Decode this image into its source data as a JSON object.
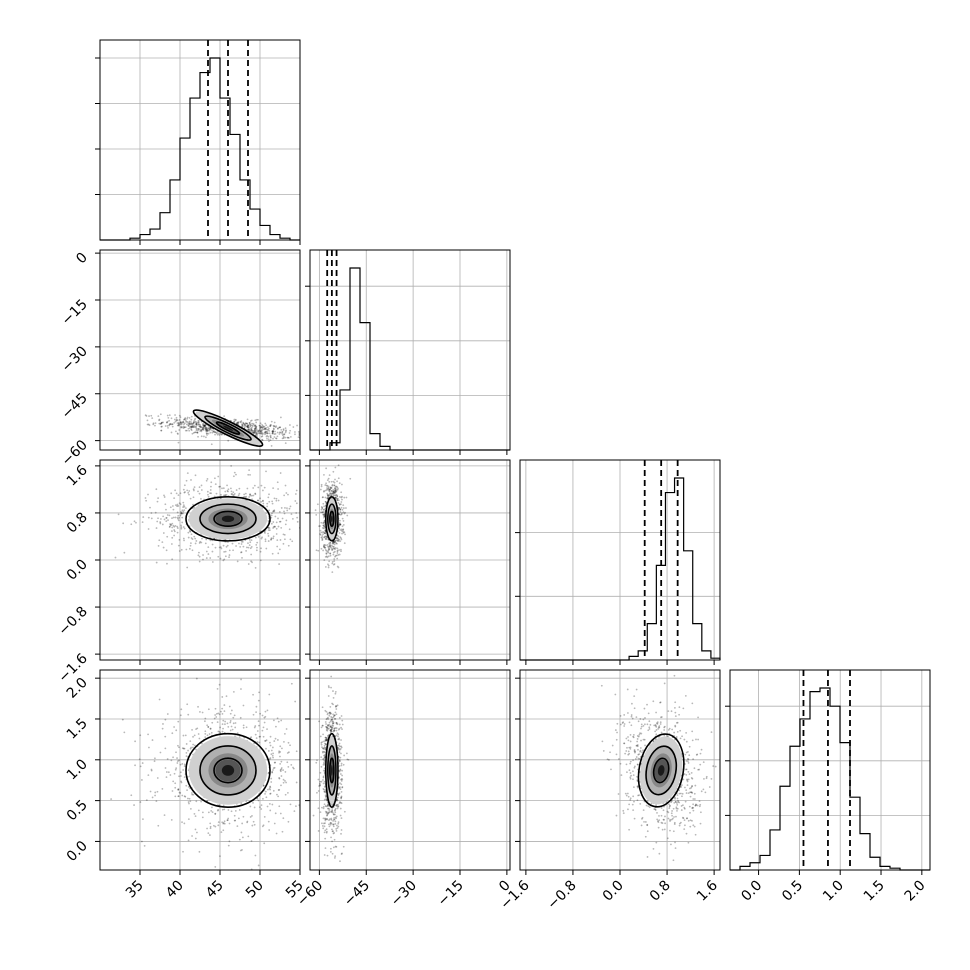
{
  "chart_data": {
    "type": "corner",
    "params": [
      {
        "range": [
          30,
          55
        ],
        "ticks": [
          35,
          40,
          45,
          50,
          55
        ],
        "tick_labels": [
          "35",
          "40",
          "45",
          "50",
          "55"
        ],
        "quantiles": [
          43.5,
          46.0,
          48.5
        ],
        "hist_counts": [
          0,
          0,
          0,
          0.01,
          0.03,
          0.06,
          0.15,
          0.33,
          0.56,
          0.78,
          0.92,
          1.0,
          0.78,
          0.58,
          0.33,
          0.17,
          0.08,
          0.03,
          0.01,
          0
        ],
        "hist_ticks": [
          0.25,
          0.5,
          0.75,
          1.0
        ]
      },
      {
        "range": [
          -63,
          1
        ],
        "ticks": [
          -60,
          -45,
          -30,
          -15,
          0
        ],
        "tick_labels": [
          "−60",
          "−45",
          "−30",
          "−15",
          "0"
        ],
        "quantiles": [
          -57.5,
          -56.0,
          -54.5
        ],
        "hist_counts": [
          0,
          0,
          0.04,
          0.33,
          1.0,
          0.7,
          0.09,
          0.02,
          0,
          0,
          0,
          0,
          0,
          0,
          0,
          0,
          0,
          0,
          0,
          0
        ],
        "hist_ticks": [
          0.3,
          0.6,
          0.9
        ]
      },
      {
        "range": [
          -1.7,
          1.7
        ],
        "ticks": [
          -1.6,
          -0.8,
          0.0,
          0.8,
          1.6
        ],
        "tick_labels": [
          "−1.6",
          "−0.8",
          "0.0",
          "0.8",
          "1.6"
        ],
        "quantiles": [
          0.42,
          0.7,
          0.98
        ],
        "hist_counts": [
          0,
          0,
          0,
          0,
          0,
          0,
          0,
          0,
          0,
          0,
          0,
          0,
          0.02,
          0.05,
          0.2,
          0.52,
          0.92,
          1.0,
          0.6,
          0.2,
          0.05,
          0.01
        ],
        "hist_ticks": [
          0.35,
          0.7
        ]
      },
      {
        "range": [
          -0.35,
          2.1
        ],
        "ticks": [
          0.0,
          0.5,
          1.0,
          1.5,
          2.0
        ],
        "tick_labels": [
          "0.0",
          "0.5",
          "1.0",
          "1.5",
          "2.0"
        ],
        "quantiles": [
          0.55,
          0.85,
          1.12
        ],
        "hist_counts": [
          0,
          0.02,
          0.04,
          0.08,
          0.22,
          0.46,
          0.68,
          0.83,
          0.98,
          1.0,
          0.9,
          0.7,
          0.4,
          0.2,
          0.07,
          0.02,
          0.01,
          0,
          0,
          0
        ],
        "hist_ticks": [
          0.3,
          0.6,
          0.9
        ]
      }
    ],
    "pairs": [
      {
        "x": 0,
        "y": 1,
        "mean": [
          46.0,
          -56.0
        ],
        "sd": [
          3.2,
          1.4
        ],
        "rho": -0.55
      },
      {
        "x": 0,
        "y": 2,
        "mean": [
          46.0,
          0.7
        ],
        "sd": [
          3.5,
          0.25
        ],
        "rho": 0.0
      },
      {
        "x": 1,
        "y": 2,
        "mean": [
          -56.0,
          0.7
        ],
        "sd": [
          1.3,
          0.25
        ],
        "rho": 0.0
      },
      {
        "x": 0,
        "y": 3,
        "mean": [
          46.0,
          0.87
        ],
        "sd": [
          3.5,
          0.3
        ],
        "rho": 0.0
      },
      {
        "x": 1,
        "y": 3,
        "mean": [
          -56.0,
          0.87
        ],
        "sd": [
          1.3,
          0.3
        ],
        "rho": 0.0
      },
      {
        "x": 2,
        "y": 3,
        "mean": [
          0.7,
          0.87
        ],
        "sd": [
          0.25,
          0.3
        ],
        "rho": -0.2
      }
    ],
    "contour_levels": [
      0.5,
      1.0,
      1.5
    ],
    "grid": true
  }
}
